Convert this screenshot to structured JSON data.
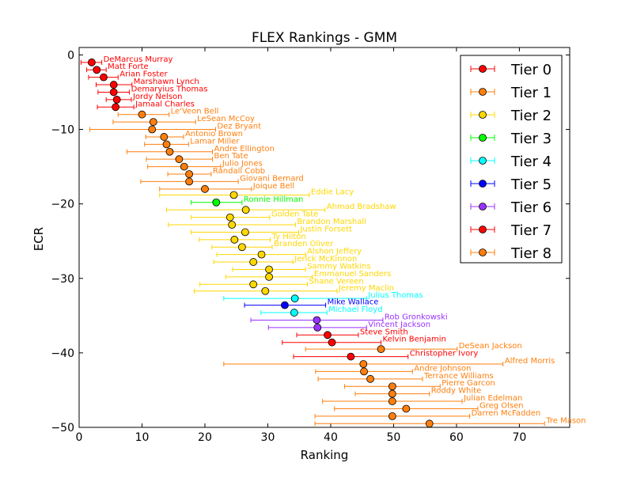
{
  "chart_data": {
    "type": "scatter",
    "title": "FLEX Rankings - GMM",
    "xlabel": "Ranking",
    "ylabel": "ECR",
    "xlim": [
      0,
      78
    ],
    "ylim": [
      -50,
      1
    ],
    "xticks": [
      0,
      10,
      20,
      30,
      40,
      50,
      60,
      70
    ],
    "yticks": [
      0,
      -10,
      -20,
      -30,
      -40,
      -50
    ],
    "xtick_labels": [
      "0",
      "10",
      "20",
      "30",
      "40",
      "50",
      "60",
      "70"
    ],
    "ytick_labels": [
      "0",
      "−10",
      "−20",
      "−30",
      "−40",
      "−50"
    ],
    "legend_position": "top-right",
    "tiers": [
      {
        "name": "Tier 0",
        "color": "#ff0000"
      },
      {
        "name": "Tier 1",
        "color": "#ff7f0e"
      },
      {
        "name": "Tier 2",
        "color": "#ffd700"
      },
      {
        "name": "Tier 3",
        "color": "#00ff00"
      },
      {
        "name": "Tier 4",
        "color": "#00ffff"
      },
      {
        "name": "Tier 5",
        "color": "#0000ff"
      },
      {
        "name": "Tier 6",
        "color": "#9933ff"
      },
      {
        "name": "Tier 7",
        "color": "#ff0000"
      },
      {
        "name": "Tier 8",
        "color": "#ff7f0e"
      }
    ],
    "points": [
      {
        "player": "DeMarcus Murray",
        "tier": 0,
        "x": 2.0,
        "y": -1,
        "xmin": 0.3,
        "xmax": 3.6
      },
      {
        "player": "Matt Forte",
        "tier": 0,
        "x": 2.8,
        "y": -2,
        "xmin": 1.2,
        "xmax": 4.3
      },
      {
        "player": "Arian Foster",
        "tier": 0,
        "x": 3.9,
        "y": -3,
        "xmin": 1.5,
        "xmax": 6.2
      },
      {
        "player": "Marshawn Lynch",
        "tier": 0,
        "x": 5.5,
        "y": -4,
        "xmin": 2.7,
        "xmax": 8.4
      },
      {
        "player": "Demaryius Thomas",
        "tier": 0,
        "x": 5.5,
        "y": -5,
        "xmin": 3.0,
        "xmax": 8.0
      },
      {
        "player": "Jordy Nelson",
        "tier": 0,
        "x": 6.0,
        "y": -6,
        "xmin": 4.3,
        "xmax": 8.3
      },
      {
        "player": "Jamaal Charles",
        "tier": 0,
        "x": 5.8,
        "y": -7,
        "xmin": 2.9,
        "xmax": 8.7
      },
      {
        "player": "Le'Veon Bell",
        "tier": 1,
        "x": 10.0,
        "y": -8,
        "xmin": 6.2,
        "xmax": 14.3
      },
      {
        "player": "LeSean McCoy",
        "tier": 1,
        "x": 11.8,
        "y": -9,
        "xmin": 5.4,
        "xmax": 18.5
      },
      {
        "player": "Dez Bryant",
        "tier": 1,
        "x": 11.6,
        "y": -10,
        "xmin": 1.7,
        "xmax": 21.7
      },
      {
        "player": "Antonio Brown",
        "tier": 1,
        "x": 13.5,
        "y": -11,
        "xmin": 10.6,
        "xmax": 16.6
      },
      {
        "player": "Lamar Miller",
        "tier": 1,
        "x": 13.9,
        "y": -12,
        "xmin": 10.4,
        "xmax": 17.4
      },
      {
        "player": "Andre Ellington",
        "tier": 1,
        "x": 14.4,
        "y": -13,
        "xmin": 7.6,
        "xmax": 21.2
      },
      {
        "player": "Ben Tate",
        "tier": 1,
        "x": 15.9,
        "y": -14,
        "xmin": 10.7,
        "xmax": 21.2
      },
      {
        "player": "Julio Jones",
        "tier": 1,
        "x": 16.7,
        "y": -15,
        "xmin": 10.9,
        "xmax": 22.5
      },
      {
        "player": "Randall Cobb",
        "tier": 1,
        "x": 17.5,
        "y": -16,
        "xmin": 14.1,
        "xmax": 21.0
      },
      {
        "player": "Giovani Bernard",
        "tier": 1,
        "x": 17.5,
        "y": -17,
        "xmin": 9.8,
        "xmax": 25.3
      },
      {
        "player": "Joique Bell",
        "tier": 1,
        "x": 20.0,
        "y": -18,
        "xmin": 12.8,
        "xmax": 27.4
      },
      {
        "player": "Eddie Lacy",
        "tier": 2,
        "x": 24.6,
        "y": -18.8,
        "xmin": 12.8,
        "xmax": 36.6
      },
      {
        "player": "Ronnie Hillman",
        "tier": 3,
        "x": 21.8,
        "y": -19.8,
        "xmin": 17.8,
        "xmax": 25.9
      },
      {
        "player": "Ahmad Bradshaw",
        "tier": 2,
        "x": 26.5,
        "y": -20.8,
        "xmin": 13.9,
        "xmax": 39.1
      },
      {
        "player": "Golden Tate",
        "tier": 2,
        "x": 24.0,
        "y": -21.8,
        "xmin": 17.8,
        "xmax": 30.3
      },
      {
        "player": "Brandon Marshall",
        "tier": 2,
        "x": 24.3,
        "y": -22.8,
        "xmin": 14.2,
        "xmax": 34.4
      },
      {
        "player": "Justin Forsett",
        "tier": 2,
        "x": 26.4,
        "y": -23.8,
        "xmin": 17.8,
        "xmax": 34.9
      },
      {
        "player": "Ty Hilton",
        "tier": 2,
        "x": 24.7,
        "y": -24.8,
        "xmin": 19.1,
        "xmax": 30.4
      },
      {
        "player": "Branden Oliver",
        "tier": 2,
        "x": 25.9,
        "y": -25.8,
        "xmin": 21.1,
        "xmax": 30.7
      },
      {
        "player": "Alshon Jeffery",
        "tier": 2,
        "x": 29.0,
        "y": -26.8,
        "xmin": 21.9,
        "xmax": 36.0
      },
      {
        "player": "Jerick McKinnon",
        "tier": 2,
        "x": 27.7,
        "y": -27.8,
        "xmin": 21.4,
        "xmax": 34.0
      },
      {
        "player": "Sammy Watkins",
        "tier": 2,
        "x": 30.2,
        "y": -28.8,
        "xmin": 24.4,
        "xmax": 36.0
      },
      {
        "player": "Emmanuel Sanders",
        "tier": 2,
        "x": 30.2,
        "y": -29.8,
        "xmin": 23.3,
        "xmax": 37.1
      },
      {
        "player": "Shane Vereen",
        "tier": 2,
        "x": 27.7,
        "y": -30.8,
        "xmin": 19.2,
        "xmax": 36.3
      },
      {
        "player": "Jeremy Maclin",
        "tier": 2,
        "x": 29.6,
        "y": -31.7,
        "xmin": 18.3,
        "xmax": 41.0
      },
      {
        "player": "Julius Thomas",
        "tier": 4,
        "x": 34.3,
        "y": -32.7,
        "xmin": 23.0,
        "xmax": 45.7
      },
      {
        "player": "Mike Wallace",
        "tier": 5,
        "x": 32.7,
        "y": -33.6,
        "xmin": 26.3,
        "xmax": 39.2
      },
      {
        "player": "Michael Floyd",
        "tier": 4,
        "x": 34.2,
        "y": -34.6,
        "xmin": 28.9,
        "xmax": 39.4
      },
      {
        "player": "Rob Gronkowski",
        "tier": 6,
        "x": 37.8,
        "y": -35.6,
        "xmin": 27.3,
        "xmax": 48.3
      },
      {
        "player": "Vincent Jackson",
        "tier": 6,
        "x": 37.9,
        "y": -36.6,
        "xmin": 30.1,
        "xmax": 45.7
      },
      {
        "player": "Steve Smith",
        "tier": 7,
        "x": 39.5,
        "y": -37.6,
        "xmin": 34.6,
        "xmax": 44.4
      },
      {
        "player": "Kelvin Benjamin",
        "tier": 7,
        "x": 40.2,
        "y": -38.6,
        "xmin": 32.3,
        "xmax": 48.0
      },
      {
        "player": "DeSean Jackson",
        "tier": 8,
        "x": 48.0,
        "y": -39.5,
        "xmin": 36.0,
        "xmax": 60.1
      },
      {
        "player": "Christopher Ivory",
        "tier": 7,
        "x": 43.2,
        "y": -40.5,
        "xmin": 34.1,
        "xmax": 52.3
      },
      {
        "player": "Alfred Morris",
        "tier": 8,
        "x": 45.2,
        "y": -41.5,
        "xmin": 23.0,
        "xmax": 67.4
      },
      {
        "player": "Andre Johnson",
        "tier": 8,
        "x": 45.3,
        "y": -42.5,
        "xmin": 37.6,
        "xmax": 53.0
      },
      {
        "player": "Terrance Williams",
        "tier": 8,
        "x": 46.3,
        "y": -43.5,
        "xmin": 38.0,
        "xmax": 54.6
      },
      {
        "player": "Pierre Garcon",
        "tier": 8,
        "x": 49.8,
        "y": -44.5,
        "xmin": 42.2,
        "xmax": 57.4
      },
      {
        "player": "Roddy White",
        "tier": 8,
        "x": 49.8,
        "y": -45.5,
        "xmin": 43.9,
        "xmax": 55.7
      },
      {
        "player": "Julian Edelman",
        "tier": 8,
        "x": 49.8,
        "y": -46.5,
        "xmin": 38.7,
        "xmax": 60.9
      },
      {
        "player": "Greg Olsen",
        "tier": 8,
        "x": 52.0,
        "y": -47.5,
        "xmin": 40.6,
        "xmax": 63.4
      },
      {
        "player": "Darren McFadden",
        "tier": 8,
        "x": 49.8,
        "y": -48.5,
        "xmin": 37.5,
        "xmax": 62.1
      },
      {
        "player": "Tre Mason",
        "tier": 8,
        "x": 55.7,
        "y": -49.5,
        "xmin": 37.5,
        "xmax": 74.0
      }
    ]
  }
}
